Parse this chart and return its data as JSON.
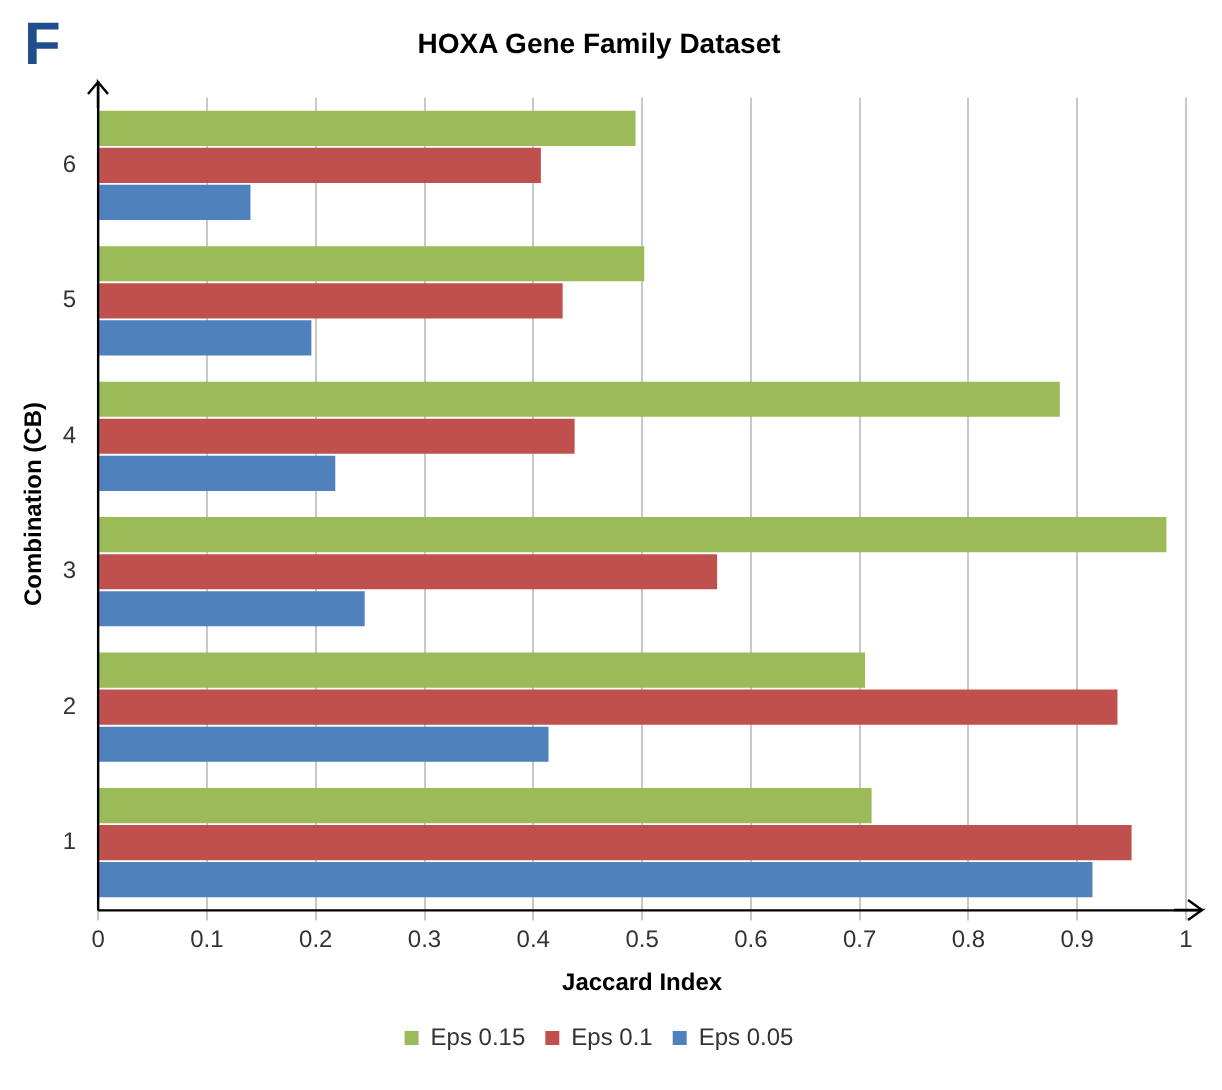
{
  "chart_data": {
    "type": "bar",
    "orientation": "horizontal",
    "title": "HOXA Gene Family Dataset",
    "xlabel": "Jaccard Index",
    "ylabel": "Combination (CB)",
    "annotations": [
      "F"
    ],
    "categories": [
      "6",
      "5",
      "4",
      "3",
      "2",
      "1"
    ],
    "series": [
      {
        "name": "Eps 0.15",
        "color": "#9bbb59",
        "values": [
          0.494,
          0.502,
          0.884,
          0.982,
          0.705,
          0.711
        ]
      },
      {
        "name": "Eps 0.1",
        "color": "#c0504d",
        "values": [
          0.407,
          0.427,
          0.438,
          0.569,
          0.937,
          0.95
        ]
      },
      {
        "name": "Eps 0.05",
        "color": "#4f81bd",
        "values": [
          0.14,
          0.196,
          0.218,
          0.245,
          0.414,
          0.914
        ]
      }
    ],
    "xlim": [
      0,
      1
    ],
    "xticks": [
      0,
      0.1,
      0.2,
      0.3,
      0.4,
      0.5,
      0.6,
      0.7,
      0.8,
      0.9,
      1
    ],
    "grid": "x",
    "legend": "bottom"
  }
}
